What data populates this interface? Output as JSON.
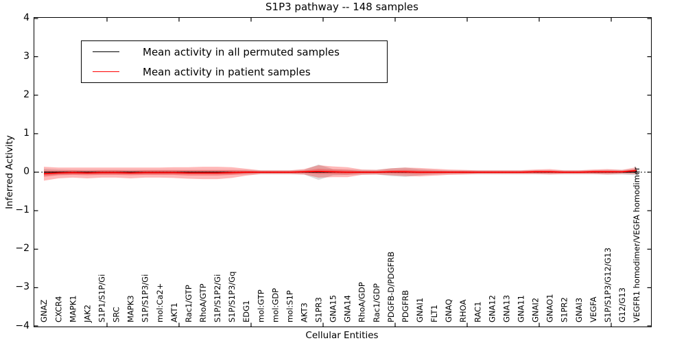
{
  "title": "S1P3 pathway -- 148 samples",
  "xlabel": "Cellular Entities",
  "ylabel": "Inferred Activity",
  "legend": [
    {
      "label": "Mean activity in all permuted samples",
      "color": "#000000"
    },
    {
      "label": "Mean activity in patient samples",
      "color": "#ff0000"
    }
  ],
  "y_tick_labels": [
    "4",
    "3",
    "2",
    "1",
    "0",
    "−1",
    "−2",
    "−3",
    "−4"
  ],
  "colors": {
    "patient_line": "#ff0000",
    "permuted_line": "#000000",
    "zero_line": "#000000",
    "patient_band": "rgba(255,0,0,0.28)",
    "patient_band_inner": "rgba(255,0,0,0.26)",
    "permuted_band": "rgba(128,128,128,0.28)"
  },
  "chart_data": {
    "type": "line",
    "title": "S1P3 pathway -- 148 samples",
    "xlabel": "Cellular Entities",
    "ylabel": "Inferred Activity",
    "ylim": [
      -4,
      4
    ],
    "y_ticks": [
      4,
      3,
      2,
      1,
      0,
      -1,
      -2,
      -3,
      -4
    ],
    "grid": false,
    "legend_position": "upper left",
    "categories": [
      "GNAZ",
      "CXCR4",
      "MAPK1",
      "JAK2",
      "S1P1/S1P/Gi",
      "SRC",
      "MAPK3",
      "S1P/S1P3/Gi",
      "mol:Ca2+",
      "AKT1",
      "Rac1/GTP",
      "RhoA/GTP",
      "S1P/S1P2/Gi",
      "S1P/S1P3/Gq",
      "EDG1",
      "mol:GTP",
      "mol:GDP",
      "mol:S1P",
      "AKT3",
      "S1PR3",
      "GNA15",
      "GNA14",
      "RhoA/GDP",
      "Rac1/GDP",
      "PDGFB-D/PDGFRB",
      "PDGFRB",
      "GNAI1",
      "FLT1",
      "GNAQ",
      "RHOA",
      "RAC1",
      "GNA12",
      "GNA13",
      "GNA11",
      "GNAI2",
      "GNAO1",
      "S1PR2",
      "GNAI3",
      "VEGFA",
      "S1P/S1P3/G12/G13",
      "G12/G13",
      "VEGFR1 homodimer/VEGFA homodimer"
    ],
    "series": [
      {
        "name": "Mean activity in all permuted samples",
        "color": "#000000",
        "values": [
          0,
          0,
          0,
          0,
          0,
          0,
          0,
          0,
          0,
          0,
          0,
          0,
          0,
          0,
          0,
          0,
          0,
          0,
          0,
          0,
          0,
          0,
          0,
          0,
          0,
          0,
          0,
          0,
          0,
          0,
          0,
          0,
          0,
          0,
          0,
          0,
          0,
          0,
          0,
          0,
          0,
          0
        ],
        "band_std": [
          0.09,
          0.07,
          0.06,
          0.06,
          0.06,
          0.06,
          0.06,
          0.06,
          0.06,
          0.06,
          0.06,
          0.06,
          0.06,
          0.06,
          0.06,
          0.05,
          0.05,
          0.05,
          0.06,
          0.2,
          0.08,
          0.07,
          0.06,
          0.06,
          0.1,
          0.12,
          0.08,
          0.06,
          0.05,
          0.05,
          0.05,
          0.05,
          0.05,
          0.05,
          0.05,
          0.05,
          0.05,
          0.05,
          0.05,
          0.06,
          0.06,
          0.08
        ]
      },
      {
        "name": "Mean activity in patient samples",
        "color": "#ff0000",
        "values": [
          -0.04,
          -0.02,
          -0.01,
          -0.02,
          -0.01,
          -0.01,
          -0.02,
          -0.01,
          -0.01,
          -0.01,
          -0.02,
          -0.02,
          -0.02,
          -0.01,
          0,
          0,
          0,
          0,
          0.01,
          0.02,
          0.01,
          0,
          0,
          0,
          0.01,
          0.01,
          0,
          0,
          0,
          0,
          0,
          0,
          0,
          0,
          0.01,
          0.01,
          0,
          0,
          0.01,
          0.01,
          0.01,
          0.04
        ],
        "band_std": [
          0.18,
          0.14,
          0.13,
          0.14,
          0.13,
          0.13,
          0.14,
          0.13,
          0.13,
          0.14,
          0.15,
          0.16,
          0.16,
          0.14,
          0.09,
          0.05,
          0.05,
          0.05,
          0.07,
          0.16,
          0.14,
          0.13,
          0.07,
          0.06,
          0.09,
          0.11,
          0.11,
          0.09,
          0.07,
          0.06,
          0.05,
          0.05,
          0.05,
          0.05,
          0.06,
          0.07,
          0.05,
          0.05,
          0.06,
          0.07,
          0.05,
          0.09
        ],
        "band_sem": [
          0.08,
          0.06,
          0.06,
          0.06,
          0.06,
          0.06,
          0.06,
          0.06,
          0.06,
          0.06,
          0.07,
          0.07,
          0.07,
          0.06,
          0.04,
          0.02,
          0.02,
          0.02,
          0.03,
          0.07,
          0.06,
          0.06,
          0.03,
          0.03,
          0.04,
          0.05,
          0.05,
          0.04,
          0.03,
          0.03,
          0.02,
          0.02,
          0.02,
          0.02,
          0.03,
          0.03,
          0.02,
          0.02,
          0.03,
          0.03,
          0.02,
          0.04
        ]
      }
    ],
    "zero_reference_line": true
  }
}
